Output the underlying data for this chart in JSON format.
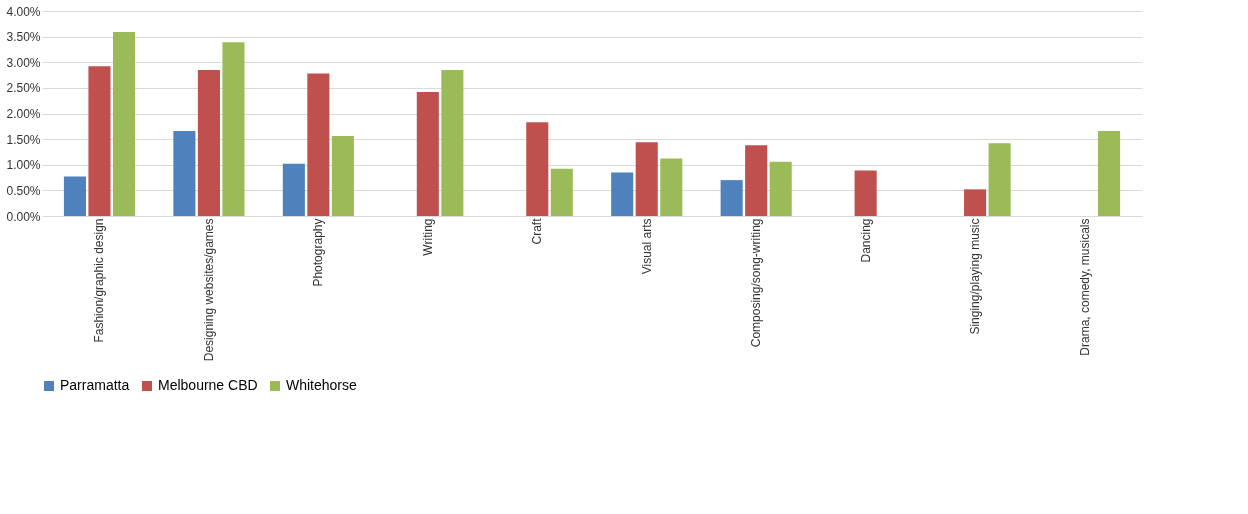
{
  "chart_data": {
    "type": "bar",
    "categories": [
      "Fashion/graphic design",
      "Designing websites/games",
      "Photography",
      "Writing",
      "Craft",
      "Visual arts",
      "Composing/song-writing",
      "Dancing",
      "Singing/playing music",
      "Drama, comedy, musicals"
    ],
    "series": [
      {
        "name": "Parramatta",
        "color": "#4f81bd",
        "values": [
          0.77,
          1.66,
          1.02,
          null,
          null,
          0.85,
          0.7,
          null,
          null,
          null
        ]
      },
      {
        "name": "Melbourne CBD",
        "color": "#c0504d",
        "values": [
          2.92,
          2.85,
          2.78,
          2.42,
          1.83,
          1.44,
          1.38,
          0.89,
          0.52,
          null
        ]
      },
      {
        "name": "Whitehorse",
        "color": "#9bbb59",
        "values": [
          3.59,
          3.39,
          1.56,
          2.85,
          0.92,
          1.12,
          1.06,
          null,
          1.42,
          1.66
        ]
      }
    ],
    "ylim": [
      0,
      4
    ],
    "yticks": [
      {
        "value": 0,
        "label": "0.00%"
      },
      {
        "value": 0.5,
        "label": "0.50%"
      },
      {
        "value": 1,
        "label": "1.00%"
      },
      {
        "value": 1.5,
        "label": "1.50%"
      },
      {
        "value": 2,
        "label": "2.00%"
      },
      {
        "value": 2.5,
        "label": "2.50%"
      },
      {
        "value": 3,
        "label": "3.00%"
      },
      {
        "value": 3.5,
        "label": "3.50%"
      },
      {
        "value": 4,
        "label": "4.00%"
      }
    ],
    "grid": "y",
    "legend": "bottom"
  }
}
